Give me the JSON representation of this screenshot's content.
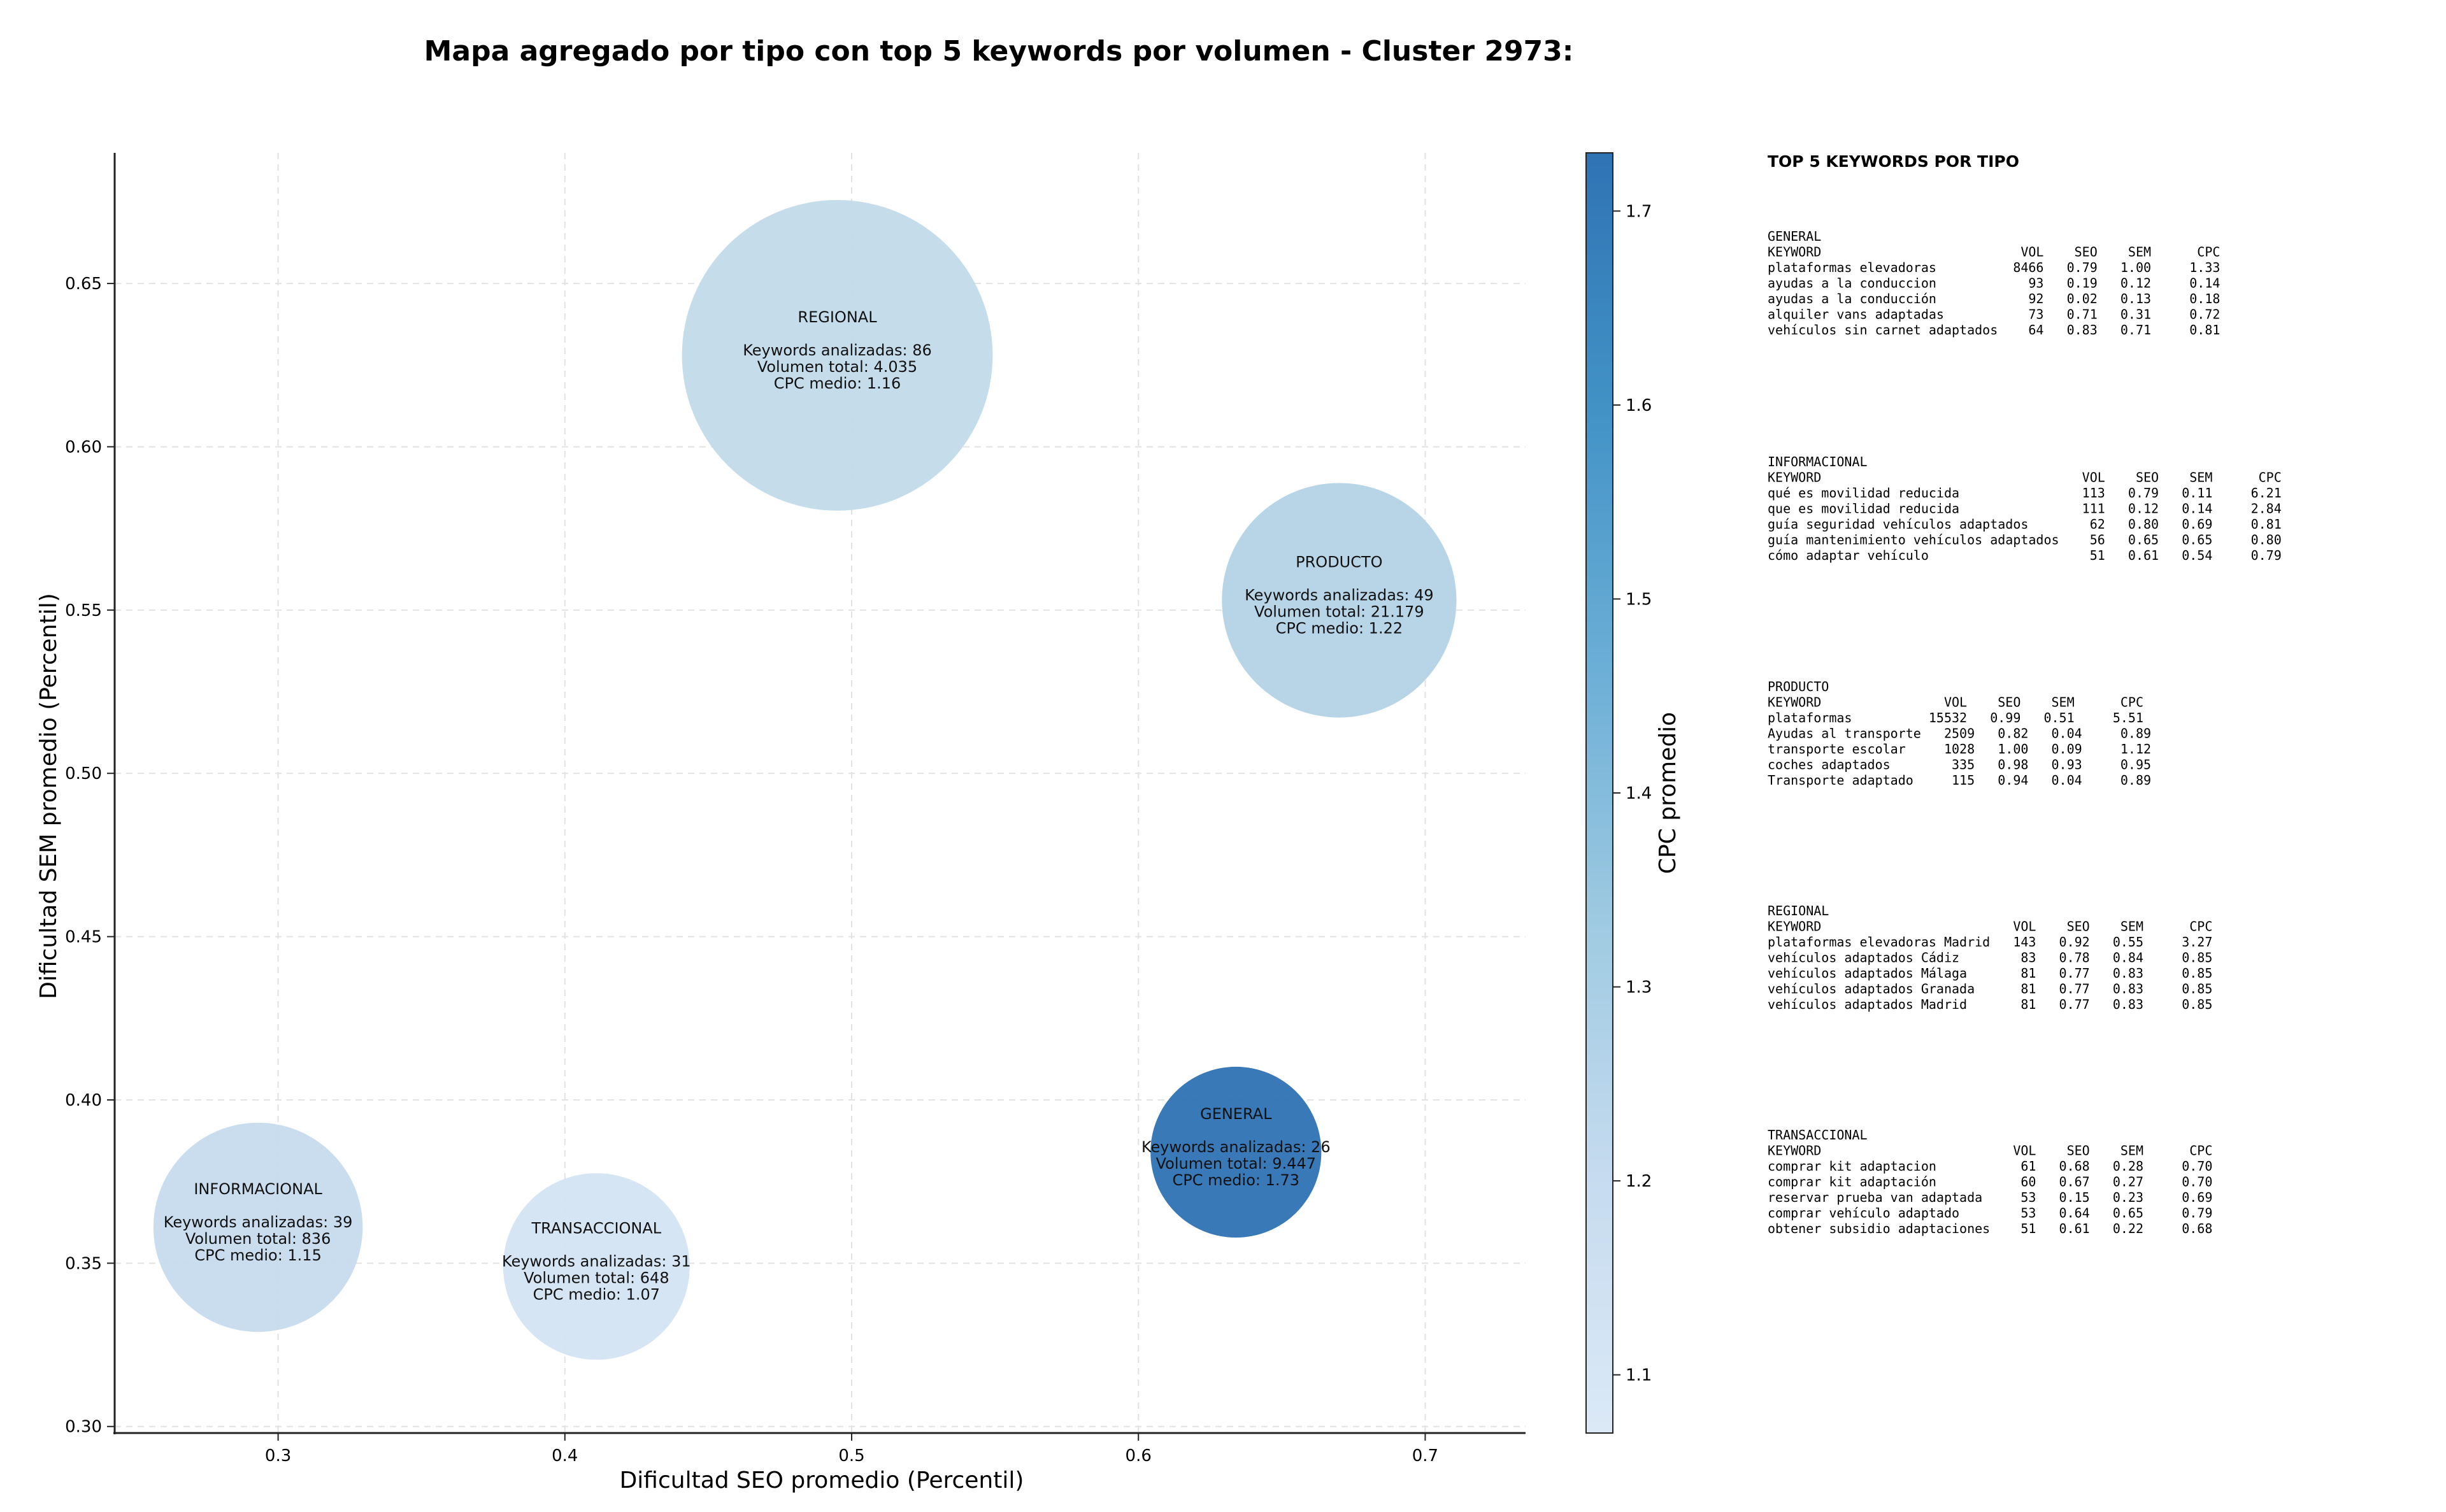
{
  "chart_data": {
    "type": "scatter",
    "title": "Mapa agregado por tipo con top 5 keywords por volumen - Cluster 2973:",
    "xlabel": "Dificultad SEO promedio (Percentil)",
    "ylabel": "Dificultad SEM promedio (Percentil)",
    "xlim": [
      0.243,
      0.735
    ],
    "ylim": [
      0.298,
      0.69
    ],
    "xticks": [
      0.3,
      0.4,
      0.5,
      0.6,
      0.7
    ],
    "xtick_labels": [
      "0.3",
      "0.4",
      "0.5",
      "0.6",
      "0.7"
    ],
    "yticks": [
      0.3,
      0.35,
      0.4,
      0.45,
      0.5,
      0.55,
      0.6,
      0.65
    ],
    "ytick_labels": [
      "0.30",
      "0.35",
      "0.40",
      "0.45",
      "0.50",
      "0.55",
      "0.60",
      "0.65"
    ],
    "grid": true,
    "size_encodes": "keywords analizadas",
    "color_encodes": "CPC promedio",
    "colorbar": {
      "label": "CPC promedio",
      "min": 1.07,
      "max": 1.73,
      "ticks": [
        1.1,
        1.2,
        1.3,
        1.4,
        1.5,
        1.6,
        1.7
      ],
      "tick_labels": [
        "1.1",
        "1.2",
        "1.3",
        "1.4",
        "1.5",
        "1.6",
        "1.7"
      ],
      "colormap": [
        "#dbe9f6",
        "#c6dbef",
        "#9ecae1",
        "#6baed6",
        "#4292c6",
        "#2f73b4"
      ]
    },
    "points": [
      {
        "name": "REGIONAL",
        "x": 0.495,
        "y": 0.628,
        "keywords": 86,
        "cpc": 1.16,
        "color": "#c2dbea",
        "lines": [
          "Keywords analizadas: 86",
          "Volumen total: 4.035",
          "CPC medio: 1.16"
        ]
      },
      {
        "name": "PRODUCTO",
        "x": 0.67,
        "y": 0.553,
        "keywords": 49,
        "cpc": 1.22,
        "color": "#b4d3e7",
        "lines": [
          "Keywords analizadas: 49",
          "Volumen total: 21.179",
          "CPC medio: 1.22"
        ]
      },
      {
        "name": "GENERAL",
        "x": 0.634,
        "y": 0.384,
        "keywords": 26,
        "cpc": 1.73,
        "color": "#2e72b4",
        "lines": [
          "Keywords analizadas: 26",
          "Volumen total: 9.447",
          "CPC medio: 1.73"
        ]
      },
      {
        "name": "INFORMACIONAL",
        "x": 0.293,
        "y": 0.361,
        "keywords": 39,
        "cpc": 1.15,
        "color": "#c6dbed",
        "lines": [
          "Keywords analizadas: 39",
          "Volumen total: 836",
          "CPC medio: 1.15"
        ]
      },
      {
        "name": "TRANSACCIONAL",
        "x": 0.411,
        "y": 0.349,
        "keywords": 31,
        "cpc": 1.07,
        "color": "#d4e4f3",
        "lines": [
          "Keywords analizadas: 31",
          "Volumen total: 648",
          "CPC medio: 1.07"
        ]
      }
    ]
  },
  "side_panel": {
    "heading": "TOP 5 KEYWORDS POR TIPO",
    "groups": [
      {
        "title": "GENERAL",
        "header": "KEYWORD                          VOL    SEO    SEM      CPC",
        "rows": [
          "plataformas elevadoras          8466   0.79   1.00     1.33",
          "ayudas a la conduccion            93   0.19   0.12     0.14",
          "ayudas a la conducción            92   0.02   0.13     0.18",
          "alquiler vans adaptadas           73   0.71   0.31     0.72",
          "vehículos sin carnet adaptados    64   0.83   0.71     0.81"
        ]
      },
      {
        "title": "INFORMACIONAL",
        "header": "KEYWORD                                  VOL    SEO    SEM      CPC",
        "rows": [
          "qué es movilidad reducida                113   0.79   0.11     6.21",
          "que es movilidad reducida                111   0.12   0.14     2.84",
          "guía seguridad vehículos adaptados        62   0.80   0.69     0.81",
          "guía mantenimiento vehículos adaptados    56   0.65   0.65     0.80",
          "cómo adaptar vehículo                     51   0.61   0.54     0.79"
        ]
      },
      {
        "title": "PRODUCTO",
        "header": "KEYWORD                VOL    SEO    SEM      CPC",
        "rows": [
          "plataformas          15532   0.99   0.51     5.51",
          "Ayudas al transporte   2509   0.82   0.04     0.89",
          "transporte escolar     1028   1.00   0.09     1.12",
          "coches adaptados        335   0.98   0.93     0.95",
          "Transporte adaptado     115   0.94   0.04     0.89"
        ]
      },
      {
        "title": "REGIONAL",
        "header": "KEYWORD                         VOL    SEO    SEM      CPC",
        "rows": [
          "plataformas elevadoras Madrid   143   0.92   0.55     3.27",
          "vehículos adaptados Cádiz        83   0.78   0.84     0.85",
          "vehículos adaptados Málaga       81   0.77   0.83     0.85",
          "vehículos adaptados Granada      81   0.77   0.83     0.85",
          "vehículos adaptados Madrid       81   0.77   0.83     0.85"
        ]
      },
      {
        "title": "TRANSACCIONAL",
        "header": "KEYWORD                         VOL    SEO    SEM      CPC",
        "rows": [
          "comprar kit adaptacion           61   0.68   0.28     0.70",
          "comprar kit adaptación           60   0.67   0.27     0.70",
          "reservar prueba van adaptada     53   0.15   0.23     0.69",
          "comprar vehículo adaptado        53   0.64   0.65     0.79",
          "obtener subsidio adaptaciones    51   0.61   0.22     0.68"
        ]
      }
    ]
  }
}
